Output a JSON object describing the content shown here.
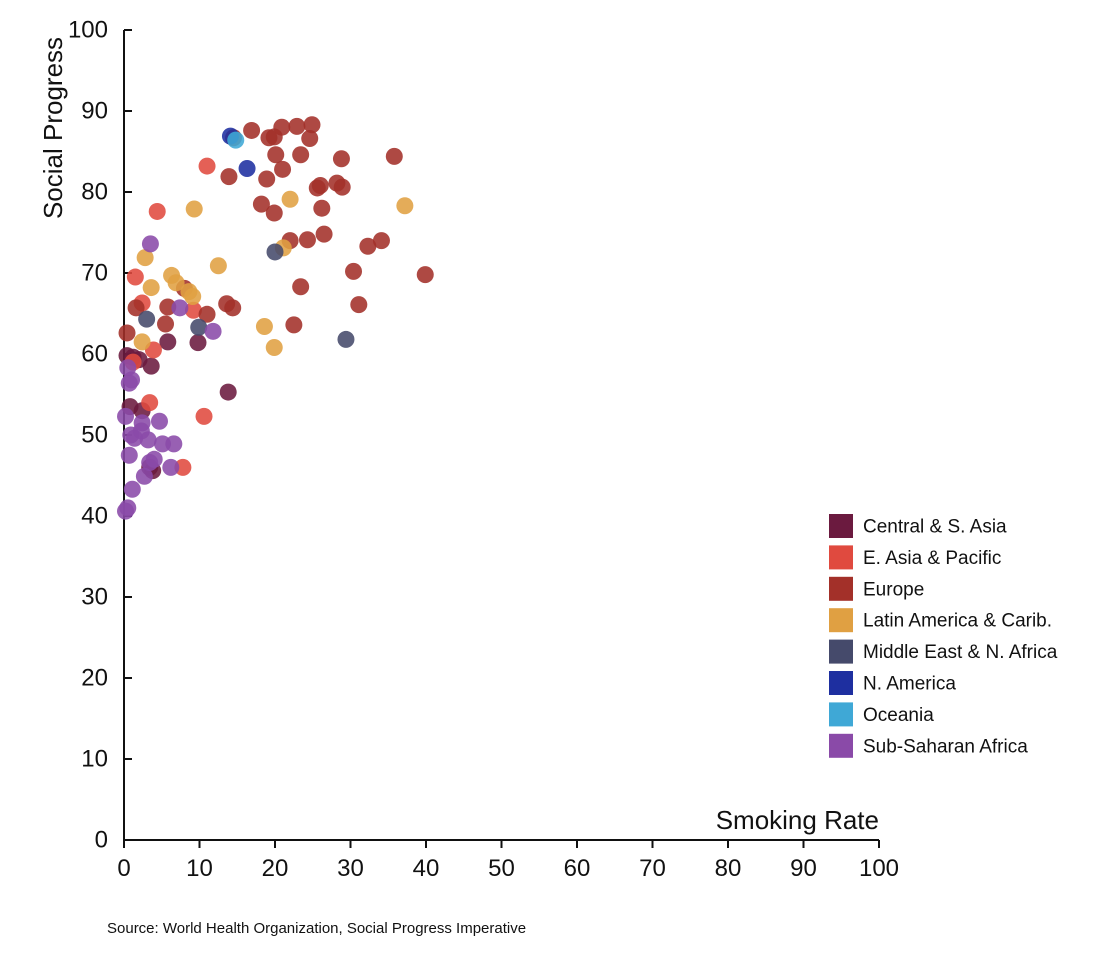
{
  "chart_data": {
    "type": "scatter",
    "xlabel": "Smoking Rate",
    "ylabel": "Social Progress",
    "xlim": [
      0,
      100
    ],
    "ylim": [
      0,
      100
    ],
    "x_ticks": [
      0,
      10,
      20,
      30,
      40,
      50,
      60,
      70,
      80,
      90,
      100
    ],
    "y_ticks": [
      0,
      10,
      20,
      30,
      40,
      50,
      60,
      70,
      80,
      90,
      100
    ],
    "grid": false,
    "legend_position": "right",
    "source": "Source: World Health Organization, Social Progress Imperative",
    "series": [
      {
        "name": "Central & S. Asia",
        "color": "#6b1a3f",
        "points": [
          [
            0.4,
            59.8
          ],
          [
            1.2,
            59.6
          ],
          [
            2.0,
            59.3
          ],
          [
            0.8,
            53.5
          ],
          [
            2.4,
            53.0
          ],
          [
            3.6,
            58.5
          ],
          [
            3.4,
            46.0
          ],
          [
            3.8,
            45.6
          ],
          [
            5.8,
            61.5
          ],
          [
            9.8,
            61.4
          ],
          [
            13.8,
            55.3
          ]
        ]
      },
      {
        "name": "E. Asia & Pacific",
        "color": "#e04a3f",
        "points": [
          [
            11.0,
            83.2
          ],
          [
            4.4,
            77.6
          ],
          [
            1.5,
            69.5
          ],
          [
            2.4,
            66.3
          ],
          [
            9.2,
            65.4
          ],
          [
            3.9,
            60.5
          ],
          [
            3.4,
            54.0
          ],
          [
            10.6,
            52.3
          ],
          [
            7.8,
            46.0
          ],
          [
            1.2,
            59.0
          ]
        ]
      },
      {
        "name": "Europe",
        "color": "#a33029",
        "points": [
          [
            14.5,
            86.7
          ],
          [
            16.9,
            87.6
          ],
          [
            19.2,
            86.7
          ],
          [
            19.9,
            86.8
          ],
          [
            20.9,
            88.0
          ],
          [
            22.9,
            88.1
          ],
          [
            24.9,
            88.3
          ],
          [
            24.6,
            86.6
          ],
          [
            23.4,
            84.6
          ],
          [
            20.1,
            84.6
          ],
          [
            21.0,
            82.8
          ],
          [
            13.9,
            81.9
          ],
          [
            18.9,
            81.6
          ],
          [
            25.6,
            80.5
          ],
          [
            26.0,
            80.8
          ],
          [
            28.2,
            81.1
          ],
          [
            28.9,
            80.6
          ],
          [
            28.8,
            84.1
          ],
          [
            35.8,
            84.4
          ],
          [
            18.2,
            78.5
          ],
          [
            26.2,
            78.0
          ],
          [
            19.9,
            77.4
          ],
          [
            22.0,
            74.0
          ],
          [
            24.3,
            74.1
          ],
          [
            26.5,
            74.8
          ],
          [
            32.3,
            73.3
          ],
          [
            34.1,
            74.0
          ],
          [
            30.4,
            70.2
          ],
          [
            39.9,
            69.8
          ],
          [
            23.4,
            68.3
          ],
          [
            8.0,
            68.1
          ],
          [
            31.1,
            66.1
          ],
          [
            5.8,
            65.8
          ],
          [
            13.6,
            66.2
          ],
          [
            14.4,
            65.7
          ],
          [
            11.0,
            64.9
          ],
          [
            5.5,
            63.7
          ],
          [
            22.5,
            63.6
          ],
          [
            0.4,
            62.6
          ],
          [
            1.6,
            65.7
          ]
        ]
      },
      {
        "name": "Latin America & Carib.",
        "color": "#e0a042",
        "points": [
          [
            9.3,
            77.9
          ],
          [
            22.0,
            79.1
          ],
          [
            37.2,
            78.3
          ],
          [
            2.8,
            71.9
          ],
          [
            12.5,
            70.9
          ],
          [
            6.3,
            69.7
          ],
          [
            6.9,
            68.8
          ],
          [
            3.6,
            68.2
          ],
          [
            8.6,
            67.7
          ],
          [
            9.1,
            67.1
          ],
          [
            21.1,
            73.1
          ],
          [
            18.6,
            63.4
          ],
          [
            19.9,
            60.8
          ],
          [
            2.4,
            61.5
          ]
        ]
      },
      {
        "name": "Middle East & N. Africa",
        "color": "#454a6b",
        "points": [
          [
            20.0,
            72.6
          ],
          [
            29.4,
            61.8
          ],
          [
            3.0,
            64.3
          ],
          [
            9.9,
            63.3
          ]
        ]
      },
      {
        "name": "N. America",
        "color": "#1e2fa0",
        "points": [
          [
            14.1,
            86.9
          ],
          [
            16.3,
            82.9
          ]
        ]
      },
      {
        "name": "Oceania",
        "color": "#3fa8d6",
        "points": [
          [
            14.8,
            86.4
          ]
        ]
      },
      {
        "name": "Sub-Saharan Africa",
        "color": "#8a4aa8",
        "points": [
          [
            3.5,
            73.6
          ],
          [
            7.4,
            65.7
          ],
          [
            11.8,
            62.8
          ],
          [
            0.5,
            58.3
          ],
          [
            1.0,
            56.8
          ],
          [
            0.7,
            56.4
          ],
          [
            0.2,
            52.3
          ],
          [
            2.4,
            51.5
          ],
          [
            4.7,
            51.7
          ],
          [
            2.3,
            50.5
          ],
          [
            0.9,
            50.0
          ],
          [
            1.4,
            49.6
          ],
          [
            3.2,
            49.4
          ],
          [
            5.1,
            48.9
          ],
          [
            6.6,
            48.9
          ],
          [
            0.7,
            47.5
          ],
          [
            4.0,
            47.0
          ],
          [
            3.4,
            46.6
          ],
          [
            6.2,
            46.0
          ],
          [
            2.7,
            44.9
          ],
          [
            1.1,
            43.3
          ],
          [
            0.5,
            41.0
          ],
          [
            0.2,
            40.6
          ]
        ]
      }
    ]
  }
}
